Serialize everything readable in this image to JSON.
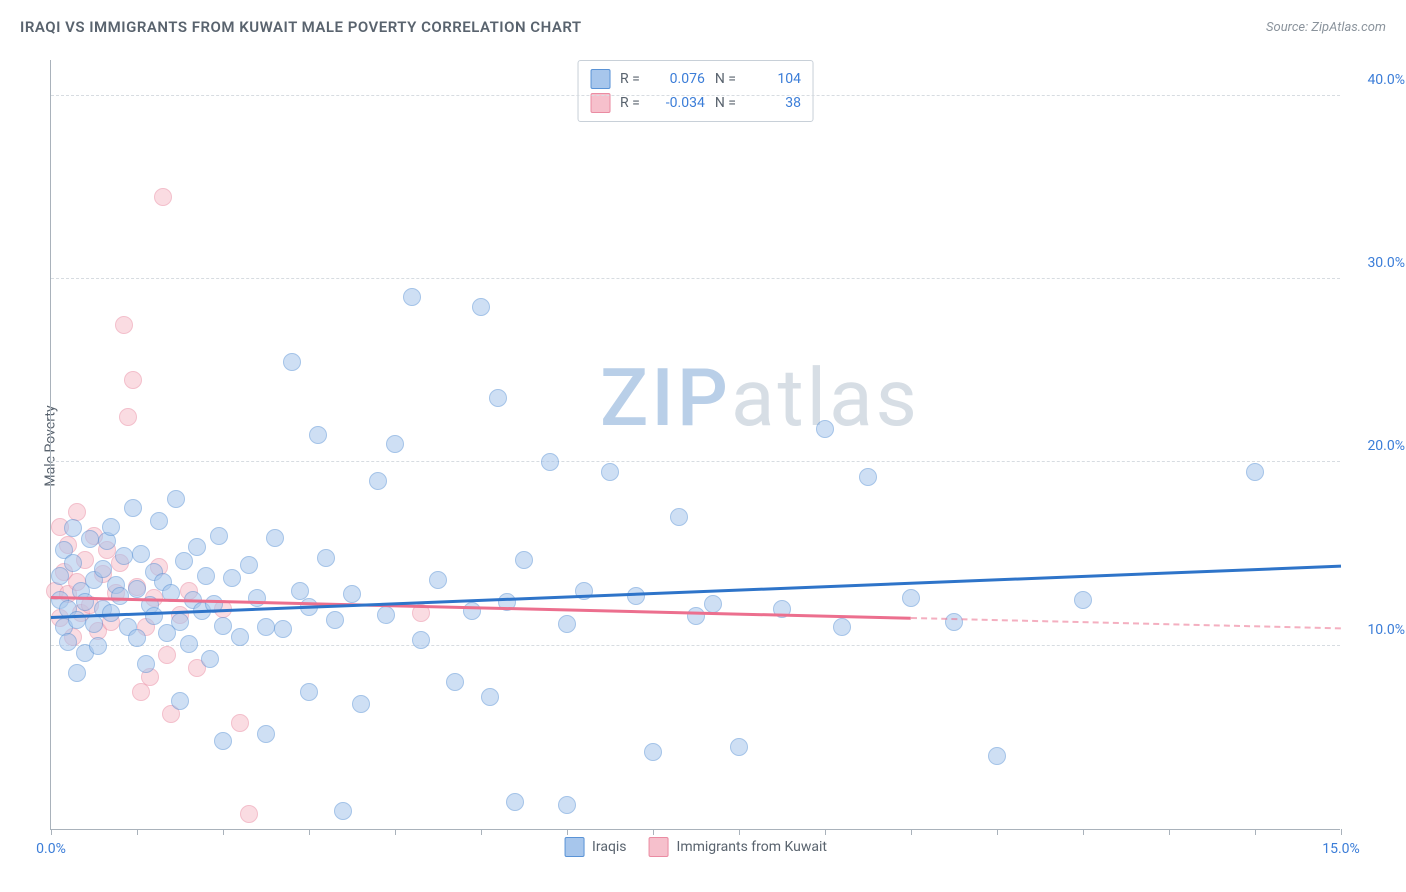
{
  "title": "IRAQI VS IMMIGRANTS FROM KUWAIT MALE POVERTY CORRELATION CHART",
  "source": "Source: ZipAtlas.com",
  "y_axis_label": "Male Poverty",
  "watermark_a": "ZIP",
  "watermark_b": "atlas",
  "colors": {
    "blue_fill": "#a7c6ec",
    "blue_stroke": "#5a93d6",
    "blue_line": "#2e74c9",
    "pink_fill": "#f6c0cc",
    "pink_stroke": "#ea8ba2",
    "pink_line": "#ec6f8e",
    "axis_text": "#59636e",
    "value_text": "#3b7dd8",
    "grid": "#d7dce1",
    "wm_a": "#b9cfe8",
    "wm_b": "#d7dee5"
  },
  "axes": {
    "x_min": 0,
    "x_max": 15,
    "y_min": 0,
    "y_max": 42,
    "x_ticks": [
      0,
      1,
      2,
      3,
      4,
      5,
      6,
      7,
      8,
      9,
      10,
      11,
      12,
      13,
      14,
      15
    ],
    "x_tick_labels": {
      "0": "0.0%",
      "15": "15.0%"
    },
    "y_gridlines": [
      10,
      20,
      30,
      40
    ],
    "y_tick_labels": {
      "10": "10.0%",
      "20": "20.0%",
      "30": "30.0%",
      "40": "40.0%"
    }
  },
  "stats": {
    "series1": {
      "swatch": "blue",
      "R_label": "R =",
      "R": "0.076",
      "N_label": "N =",
      "N": "104"
    },
    "series2": {
      "swatch": "pink",
      "R_label": "R =",
      "R": "-0.034",
      "N_label": "N =",
      "N": "38"
    }
  },
  "legend": {
    "series1": "Iraqis",
    "series2": "Immigrants from Kuwait"
  },
  "trend_lines": {
    "blue": {
      "x1": 0.0,
      "y1": 11.5,
      "x2": 15.0,
      "y2": 14.3,
      "solid_until_x": 15.0
    },
    "pink": {
      "x1": 0.0,
      "y1": 12.6,
      "x2": 15.0,
      "y2": 10.9,
      "solid_until_x": 10.0
    }
  },
  "scatter_blue": [
    [
      0.1,
      12.5
    ],
    [
      0.1,
      13.8
    ],
    [
      0.15,
      11.0
    ],
    [
      0.15,
      15.2
    ],
    [
      0.2,
      10.2
    ],
    [
      0.2,
      12.0
    ],
    [
      0.25,
      14.5
    ],
    [
      0.25,
      16.4
    ],
    [
      0.3,
      11.4
    ],
    [
      0.3,
      8.5
    ],
    [
      0.35,
      13.0
    ],
    [
      0.4,
      12.4
    ],
    [
      0.4,
      9.6
    ],
    [
      0.45,
      15.8
    ],
    [
      0.5,
      11.2
    ],
    [
      0.5,
      13.6
    ],
    [
      0.55,
      10.0
    ],
    [
      0.6,
      14.2
    ],
    [
      0.6,
      12.0
    ],
    [
      0.65,
      15.7
    ],
    [
      0.7,
      11.8
    ],
    [
      0.7,
      16.5
    ],
    [
      0.75,
      13.3
    ],
    [
      0.8,
      12.7
    ],
    [
      0.85,
      14.9
    ],
    [
      0.9,
      11.0
    ],
    [
      0.95,
      17.5
    ],
    [
      1.0,
      10.4
    ],
    [
      1.0,
      13.1
    ],
    [
      1.05,
      15.0
    ],
    [
      1.1,
      9.0
    ],
    [
      1.15,
      12.2
    ],
    [
      1.2,
      14.0
    ],
    [
      1.2,
      11.6
    ],
    [
      1.25,
      16.8
    ],
    [
      1.3,
      13.5
    ],
    [
      1.35,
      10.7
    ],
    [
      1.4,
      12.9
    ],
    [
      1.45,
      18.0
    ],
    [
      1.5,
      11.3
    ],
    [
      1.5,
      7.0
    ],
    [
      1.55,
      14.6
    ],
    [
      1.6,
      10.1
    ],
    [
      1.65,
      12.5
    ],
    [
      1.7,
      15.4
    ],
    [
      1.75,
      11.9
    ],
    [
      1.8,
      13.8
    ],
    [
      1.85,
      9.3
    ],
    [
      1.9,
      12.3
    ],
    [
      1.95,
      16.0
    ],
    [
      2.0,
      11.1
    ],
    [
      2.0,
      4.8
    ],
    [
      2.1,
      13.7
    ],
    [
      2.2,
      10.5
    ],
    [
      2.3,
      14.4
    ],
    [
      2.4,
      12.6
    ],
    [
      2.5,
      11.0
    ],
    [
      2.5,
      5.2
    ],
    [
      2.6,
      15.9
    ],
    [
      2.7,
      10.9
    ],
    [
      2.8,
      25.5
    ],
    [
      2.9,
      13.0
    ],
    [
      3.0,
      12.1
    ],
    [
      3.0,
      7.5
    ],
    [
      3.1,
      21.5
    ],
    [
      3.2,
      14.8
    ],
    [
      3.3,
      11.4
    ],
    [
      3.4,
      1.0
    ],
    [
      3.5,
      12.8
    ],
    [
      3.6,
      6.8
    ],
    [
      3.8,
      19.0
    ],
    [
      3.9,
      11.7
    ],
    [
      4.0,
      21.0
    ],
    [
      4.2,
      29.0
    ],
    [
      4.3,
      10.3
    ],
    [
      4.5,
      13.6
    ],
    [
      4.7,
      8.0
    ],
    [
      4.9,
      11.9
    ],
    [
      5.0,
      28.5
    ],
    [
      5.1,
      7.2
    ],
    [
      5.2,
      23.5
    ],
    [
      5.3,
      12.4
    ],
    [
      5.4,
      1.5
    ],
    [
      5.5,
      14.7
    ],
    [
      5.8,
      20.0
    ],
    [
      6.0,
      11.2
    ],
    [
      6.0,
      1.3
    ],
    [
      6.2,
      13.0
    ],
    [
      6.5,
      19.5
    ],
    [
      6.8,
      12.7
    ],
    [
      7.0,
      4.2
    ],
    [
      7.3,
      17.0
    ],
    [
      7.5,
      11.6
    ],
    [
      7.7,
      12.3
    ],
    [
      8.0,
      4.5
    ],
    [
      8.5,
      12.0
    ],
    [
      9.0,
      21.8
    ],
    [
      9.2,
      11.0
    ],
    [
      9.5,
      19.2
    ],
    [
      10.0,
      12.6
    ],
    [
      10.5,
      11.3
    ],
    [
      11.0,
      4.0
    ],
    [
      12.0,
      12.5
    ],
    [
      14.0,
      19.5
    ]
  ],
  "scatter_pink": [
    [
      0.05,
      13.0
    ],
    [
      0.1,
      16.5
    ],
    [
      0.1,
      11.5
    ],
    [
      0.15,
      14.0
    ],
    [
      0.2,
      12.8
    ],
    [
      0.2,
      15.5
    ],
    [
      0.25,
      10.5
    ],
    [
      0.3,
      17.3
    ],
    [
      0.3,
      13.5
    ],
    [
      0.35,
      11.8
    ],
    [
      0.4,
      14.7
    ],
    [
      0.45,
      12.2
    ],
    [
      0.5,
      16.0
    ],
    [
      0.55,
      10.8
    ],
    [
      0.6,
      13.9
    ],
    [
      0.65,
      15.2
    ],
    [
      0.7,
      11.3
    ],
    [
      0.75,
      12.9
    ],
    [
      0.8,
      14.5
    ],
    [
      0.85,
      27.5
    ],
    [
      0.9,
      22.5
    ],
    [
      0.95,
      24.5
    ],
    [
      1.0,
      13.2
    ],
    [
      1.05,
      7.5
    ],
    [
      1.1,
      11.0
    ],
    [
      1.15,
      8.3
    ],
    [
      1.2,
      12.6
    ],
    [
      1.25,
      14.3
    ],
    [
      1.3,
      34.5
    ],
    [
      1.35,
      9.5
    ],
    [
      1.4,
      6.3
    ],
    [
      1.5,
      11.7
    ],
    [
      1.6,
      13.0
    ],
    [
      1.7,
      8.8
    ],
    [
      2.0,
      12.0
    ],
    [
      2.2,
      5.8
    ],
    [
      2.3,
      0.8
    ],
    [
      4.3,
      11.8
    ]
  ]
}
